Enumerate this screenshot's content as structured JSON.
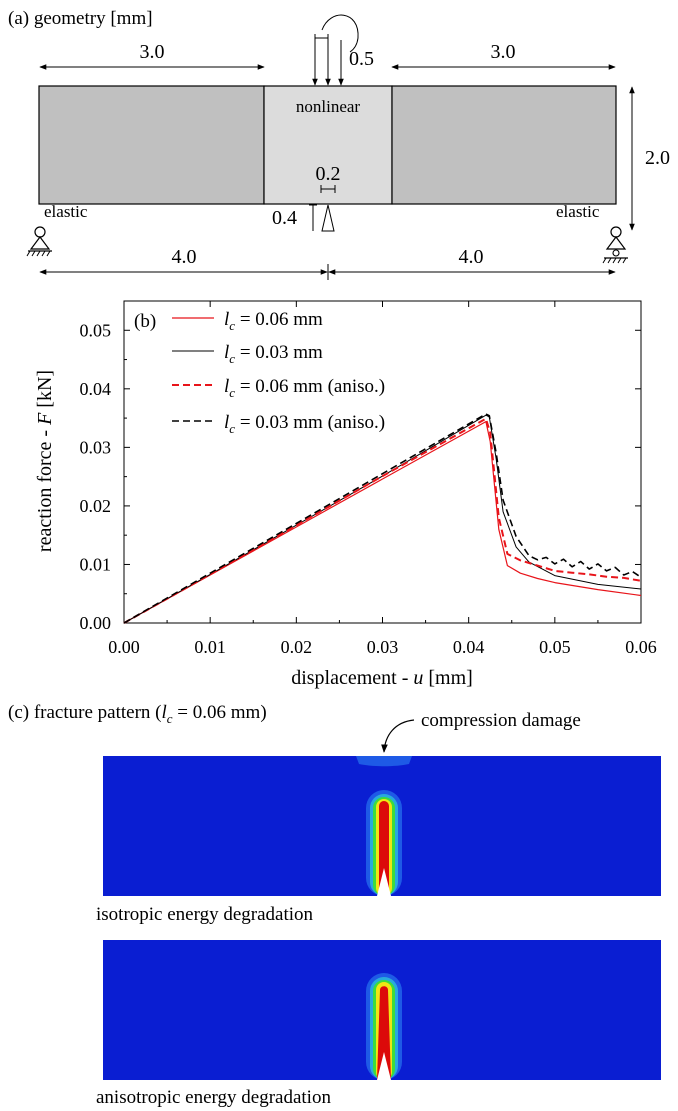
{
  "panel_a": {
    "title": "(a) geometry [mm]",
    "dim_left": "3.0",
    "dim_right": "3.0",
    "dim_load": "0.5",
    "dim_height": "2.0",
    "dim_notch_width": "0.2",
    "dim_notch_height": "0.4",
    "dim_span_left": "4.0",
    "dim_span_right": "4.0",
    "label_nonlinear": "nonlinear",
    "label_elastic_left": "elastic",
    "label_elastic_right": "elastic",
    "colors": {
      "elastic": "#c0c0c0",
      "nonlinear": "#dcdcdc"
    }
  },
  "panel_b": {
    "label": "(b)",
    "xlabel_prefix": "displacement - ",
    "xlabel_var": "u",
    "xlabel_suffix": " [mm]",
    "ylabel_prefix": "reaction force - ",
    "ylabel_var": "F",
    "ylabel_suffix": " [kN]",
    "legend_var": "l",
    "legend_sub": "c",
    "legend": [
      {
        "text": " = 0.06 mm",
        "color": "#e8141a",
        "dash": ""
      },
      {
        "text": " = 0.03 mm",
        "color": "#000000",
        "dash": ""
      },
      {
        "text": " = 0.06 mm (aniso.)",
        "color": "#e8141a",
        "dash": "7,4"
      },
      {
        "text": " = 0.03 mm (aniso.)",
        "color": "#000000",
        "dash": "7,4"
      }
    ]
  },
  "chart_data": {
    "type": "line",
    "xlabel": "displacement - u [mm]",
    "ylabel": "reaction force - F [kN]",
    "xlim": [
      0,
      0.06
    ],
    "ylim": [
      0,
      0.055
    ],
    "xticks": [
      "0.00",
      "0.01",
      "0.02",
      "0.03",
      "0.04",
      "0.05",
      "0.06"
    ],
    "yticks": [
      "0.00",
      "0.01",
      "0.02",
      "0.03",
      "0.04",
      "0.05"
    ],
    "legend_position": "top-left",
    "series": [
      {
        "name": "lc = 0.06 mm",
        "color": "#e8141a",
        "dash": "",
        "width": 1.2,
        "x": [
          0,
          0.01,
          0.02,
          0.03,
          0.042,
          0.0425,
          0.0435,
          0.0445,
          0.046,
          0.048,
          0.05,
          0.055,
          0.06
        ],
        "y": [
          0,
          0.0082,
          0.0164,
          0.0246,
          0.0344,
          0.031,
          0.016,
          0.0098,
          0.0085,
          0.0076,
          0.0069,
          0.0057,
          0.0047
        ]
      },
      {
        "name": "lc = 0.03 mm",
        "color": "#000000",
        "dash": "",
        "width": 1.0,
        "x": [
          0,
          0.01,
          0.02,
          0.03,
          0.042,
          0.0424,
          0.0432,
          0.044,
          0.0455,
          0.047,
          0.05,
          0.055,
          0.06
        ],
        "y": [
          0,
          0.0083,
          0.0167,
          0.0251,
          0.0355,
          0.0352,
          0.028,
          0.019,
          0.013,
          0.0104,
          0.0081,
          0.0066,
          0.0058
        ]
      },
      {
        "name": "lc = 0.06 mm (aniso.)",
        "color": "#e8141a",
        "dash": "7,4",
        "width": 2.0,
        "x": [
          0,
          0.01,
          0.02,
          0.03,
          0.042,
          0.0425,
          0.0435,
          0.0445,
          0.046,
          0.048,
          0.05,
          0.052,
          0.054,
          0.056,
          0.058,
          0.06
        ],
        "y": [
          0,
          0.0083,
          0.0167,
          0.0251,
          0.0349,
          0.0325,
          0.018,
          0.0118,
          0.0107,
          0.0098,
          0.0089,
          0.0086,
          0.0083,
          0.0079,
          0.0077,
          0.0072
        ]
      },
      {
        "name": "lc = 0.03 mm (aniso.)",
        "color": "#000000",
        "dash": "7,4",
        "width": 1.6,
        "x": [
          0,
          0.01,
          0.02,
          0.03,
          0.042,
          0.0424,
          0.0432,
          0.044,
          0.0455,
          0.047,
          0.048,
          0.049,
          0.05,
          0.051,
          0.052,
          0.053,
          0.054,
          0.055,
          0.056,
          0.057,
          0.058,
          0.059,
          0.06
        ],
        "y": [
          0,
          0.0085,
          0.017,
          0.0255,
          0.0357,
          0.0354,
          0.029,
          0.021,
          0.0148,
          0.0115,
          0.0108,
          0.0112,
          0.0101,
          0.0109,
          0.0096,
          0.0105,
          0.0092,
          0.0101,
          0.0089,
          0.0095,
          0.0082,
          0.0088,
          0.0078
        ]
      }
    ]
  },
  "panel_c": {
    "title_prefix": "(c) fracture pattern (",
    "title_var": "l",
    "title_sub": "c",
    "title_suffix": " = 0.06 mm)",
    "annotation": "compression damage",
    "caption_top": "isotropic energy degradation",
    "caption_bottom": "anisotropic energy degradation",
    "colors": {
      "background": "#0a1ed2",
      "contour_1": "#1e5ae6",
      "contour_2": "#28aadc",
      "contour_3": "#3cdc3c",
      "contour_4": "#f0e614",
      "core": "#dc0a0a"
    }
  }
}
